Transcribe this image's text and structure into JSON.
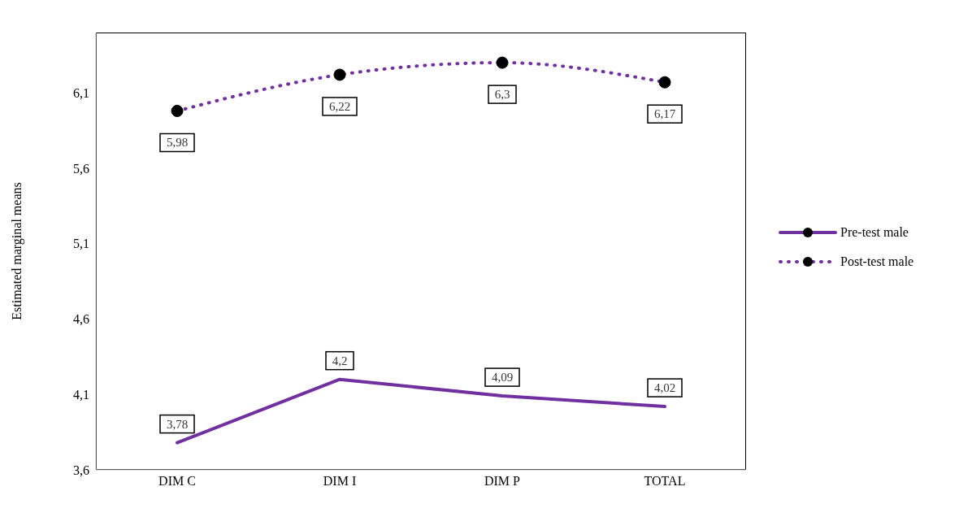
{
  "chart_data": {
    "type": "line",
    "ylabel": "Estimated marginal means",
    "categories": [
      "DIM C",
      "DIM I",
      "DIM P",
      "TOTAL"
    ],
    "series": [
      {
        "name": "Pre-test male",
        "color": "#7030a0",
        "values": [
          3.78,
          4.2,
          4.09,
          4.02
        ],
        "value_labels": [
          "3,78",
          "4,2",
          "4,09",
          "4,02"
        ],
        "line_style": "solid",
        "marker": "none"
      },
      {
        "name": "Post-test male",
        "color": "#7030a0",
        "values": [
          5.98,
          6.22,
          6.3,
          6.17
        ],
        "value_labels": [
          "5,98",
          "6,22",
          "6,3",
          "6,17"
        ],
        "line_style": "dotted",
        "marker": "circle"
      }
    ],
    "ylim": [
      3.6,
      6.5
    ],
    "yticks": [
      {
        "value": 3.6,
        "label": "3,6"
      },
      {
        "value": 4.1,
        "label": "4,1"
      },
      {
        "value": 4.6,
        "label": "4,6"
      },
      {
        "value": 5.1,
        "label": "5,1"
      },
      {
        "value": 5.6,
        "label": "5,6"
      },
      {
        "value": 6.1,
        "label": "6,1"
      }
    ],
    "legend": "right"
  }
}
